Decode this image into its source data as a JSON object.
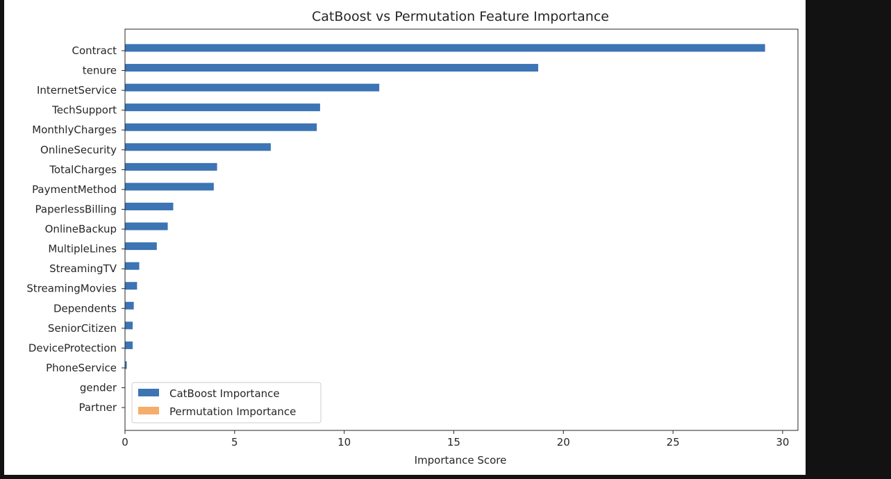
{
  "chart_data": {
    "type": "bar",
    "orientation": "horizontal",
    "title": "CatBoost vs Permutation Feature Importance",
    "xlabel": "Importance Score",
    "ylabel": "",
    "xlim": [
      0,
      30.7
    ],
    "xticks": [
      0,
      5,
      10,
      15,
      20,
      25,
      30
    ],
    "grid": false,
    "legend_position": "lower-left",
    "categories": [
      "Contract",
      "tenure",
      "InternetService",
      "TechSupport",
      "MonthlyCharges",
      "OnlineSecurity",
      "TotalCharges",
      "PaymentMethod",
      "PaperlessBilling",
      "OnlineBackup",
      "MultipleLines",
      "StreamingTV",
      "StreamingMovies",
      "Dependents",
      "SeniorCitizen",
      "DeviceProtection",
      "PhoneService",
      "gender",
      "Partner"
    ],
    "series": [
      {
        "name": "CatBoost Importance",
        "color": "#3c74b4",
        "values": [
          29.2,
          18.85,
          11.6,
          8.9,
          8.75,
          6.65,
          4.2,
          4.05,
          2.2,
          1.95,
          1.45,
          0.65,
          0.55,
          0.4,
          0.35,
          0.35,
          0.08,
          0.0,
          0.0
        ]
      },
      {
        "name": "Permutation Importance",
        "color": "#f6ac6a",
        "values": [
          0,
          0,
          0,
          0,
          0,
          0,
          0,
          0,
          0,
          0,
          0,
          0,
          0,
          0,
          0,
          0,
          0,
          0,
          0
        ]
      }
    ]
  }
}
